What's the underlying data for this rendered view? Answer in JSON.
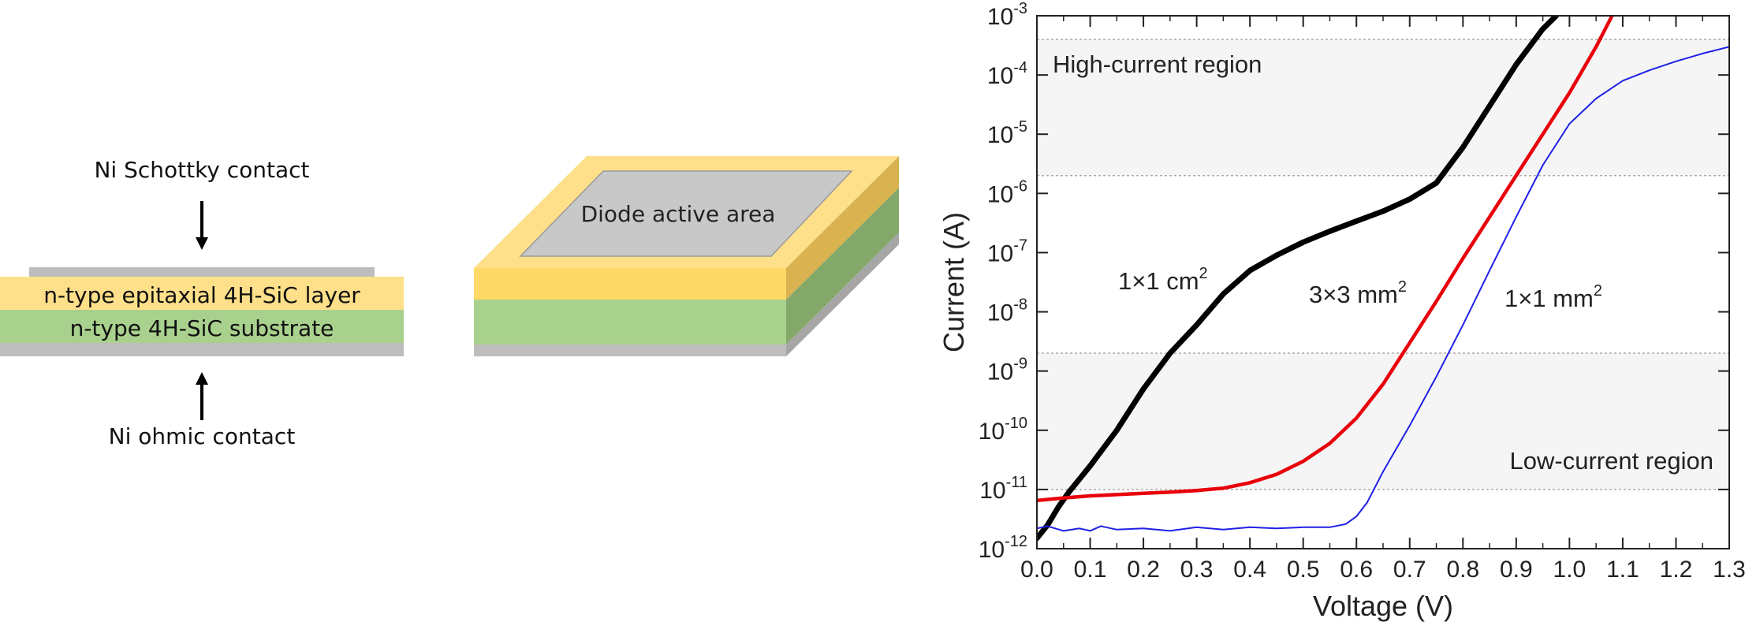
{
  "cross_section": {
    "top_label": "Ni Schottky contact",
    "epi_label": "n-type epitaxial 4H-SiC layer",
    "substrate_label": "n-type 4H-SiC substrate",
    "bottom_label": "Ni ohmic contact"
  },
  "diode_3d": {
    "active_area_label": "Diode active area"
  },
  "colors": {
    "contact_gray": "#bdbdbd",
    "epi_yellow": "#ffe08a",
    "substrate_green": "#a9d18e",
    "curve_1cm2": "#000000",
    "curve_3mm2": "#e8000b",
    "curve_1mm2": "#1f1fe6",
    "region_shade": "#f5f5f5"
  },
  "chart_data": {
    "type": "line",
    "xlabel": "Voltage (V)",
    "ylabel": "Current (A)",
    "xlim": [
      0.0,
      1.3
    ],
    "ylim": [
      1e-12,
      0.001
    ],
    "yscale": "log",
    "x_ticks": [
      "0.0",
      "0.1",
      "0.2",
      "0.3",
      "0.4",
      "0.5",
      "0.6",
      "0.7",
      "0.8",
      "0.9",
      "1.0",
      "1.1",
      "1.2",
      "1.3"
    ],
    "y_ticks": [
      {
        "base": "10",
        "exp": "-12"
      },
      {
        "base": "10",
        "exp": "-11"
      },
      {
        "base": "10",
        "exp": "-10"
      },
      {
        "base": "10",
        "exp": "-9"
      },
      {
        "base": "10",
        "exp": "-8"
      },
      {
        "base": "10",
        "exp": "-7"
      },
      {
        "base": "10",
        "exp": "-6"
      },
      {
        "base": "10",
        "exp": "-5"
      },
      {
        "base": "10",
        "exp": "-4"
      },
      {
        "base": "10",
        "exp": "-3"
      }
    ],
    "regions": [
      {
        "label": "High-current region",
        "y_range": [
          2e-06,
          0.0004
        ]
      },
      {
        "label": "Low-current region",
        "y_range": [
          1e-11,
          2e-09
        ]
      }
    ],
    "series": [
      {
        "name": "1×1 cm",
        "superscript": "2",
        "color": "#000000",
        "x": [
          0.0,
          0.02,
          0.04,
          0.06,
          0.08,
          0.1,
          0.15,
          0.2,
          0.25,
          0.3,
          0.35,
          0.4,
          0.45,
          0.5,
          0.55,
          0.6,
          0.65,
          0.7,
          0.75,
          0.8,
          0.85,
          0.9,
          0.95,
          0.975
        ],
        "y": [
          1.5e-12,
          2.5e-12,
          5e-12,
          9e-12,
          1.5e-11,
          2.5e-11,
          1e-10,
          5e-10,
          2e-09,
          6e-09,
          2e-08,
          5e-08,
          9e-08,
          1.5e-07,
          2.3e-07,
          3.4e-07,
          5e-07,
          8e-07,
          1.5e-06,
          6e-06,
          3e-05,
          0.00015,
          0.0006,
          0.001
        ]
      },
      {
        "name": "3×3 mm",
        "superscript": "2",
        "color": "#e8000b",
        "x": [
          0.0,
          0.05,
          0.1,
          0.15,
          0.2,
          0.25,
          0.3,
          0.35,
          0.4,
          0.45,
          0.5,
          0.55,
          0.6,
          0.65,
          0.7,
          0.75,
          0.8,
          0.85,
          0.9,
          0.95,
          1.0,
          1.05,
          1.08
        ],
        "y": [
          6.5e-12,
          7.2e-12,
          7.8e-12,
          8.2e-12,
          8.6e-12,
          9e-12,
          9.6e-12,
          1.05e-11,
          1.3e-11,
          1.8e-11,
          3e-11,
          6e-11,
          1.6e-10,
          6e-10,
          3e-09,
          1.5e-08,
          8e-08,
          4e-07,
          2e-06,
          1e-05,
          5e-05,
          0.0003,
          0.001
        ]
      },
      {
        "name": "1×1 mm",
        "superscript": "2",
        "color": "#1f1fe6",
        "x": [
          0.0,
          0.02,
          0.05,
          0.08,
          0.1,
          0.12,
          0.15,
          0.2,
          0.25,
          0.3,
          0.35,
          0.4,
          0.45,
          0.5,
          0.55,
          0.58,
          0.6,
          0.62,
          0.65,
          0.7,
          0.75,
          0.8,
          0.85,
          0.9,
          0.95,
          1.0,
          1.05,
          1.1,
          1.15,
          1.2,
          1.25,
          1.3
        ],
        "y": [
          2.2e-12,
          2.4e-12,
          2e-12,
          2.2e-12,
          2e-12,
          2.4e-12,
          2.1e-12,
          2.2e-12,
          2e-12,
          2.3e-12,
          2.1e-12,
          2.3e-12,
          2.2e-12,
          2.3e-12,
          2.3e-12,
          2.6e-12,
          3.5e-12,
          6e-12,
          2e-11,
          1.2e-10,
          8e-10,
          6e-09,
          5e-08,
          4e-07,
          3e-06,
          1.5e-05,
          4e-05,
          8e-05,
          0.00012,
          0.00017,
          0.00023,
          0.0003
        ]
      }
    ]
  }
}
